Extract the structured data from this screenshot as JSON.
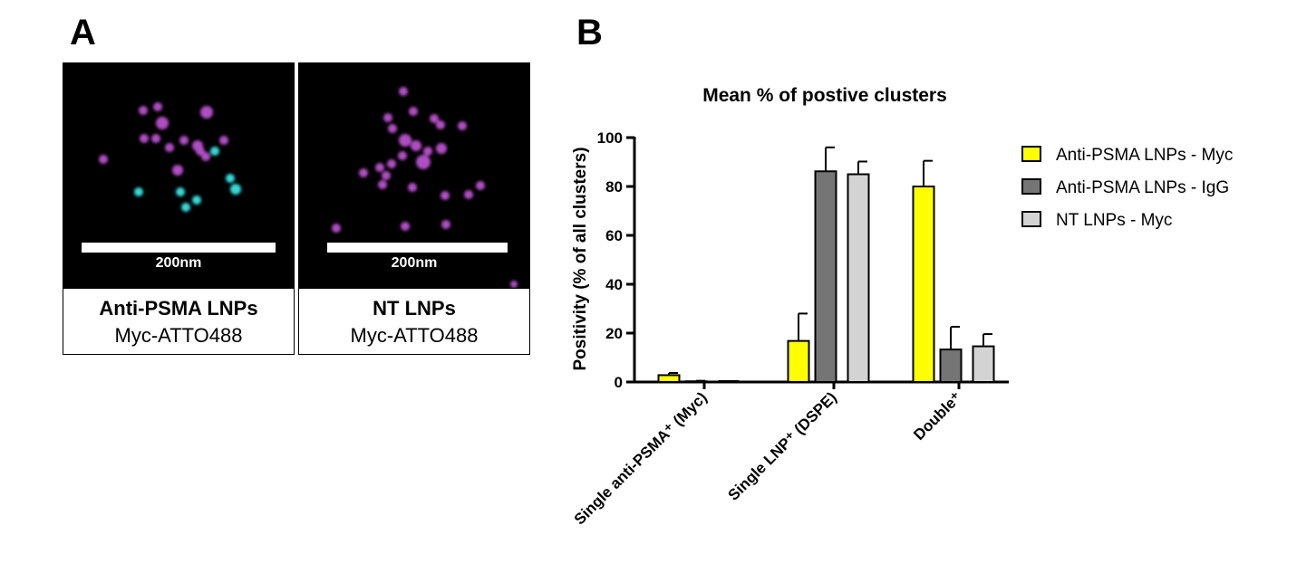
{
  "panel_a": {
    "letter": "A",
    "images": [
      {
        "scale_label": "200nm",
        "caption_title": "Anti-PSMA LNPs",
        "caption_subtitle": "Myc-ATTO488",
        "dot_colors": {
          "magenta": "#b04ec4",
          "cyan": "#36d8d8"
        }
      },
      {
        "scale_label": "200nm",
        "caption_title": "NT LNPs",
        "caption_subtitle": "Myc-ATTO488",
        "dot_colors": {
          "magenta": "#b04ec4"
        }
      }
    ]
  },
  "panel_b": {
    "letter": "B"
  },
  "chart_data": {
    "type": "bar",
    "title": "Mean % of postive clusters",
    "ylabel": "Positivity (% of all clusters)",
    "xlabel": "",
    "ylim": [
      0,
      100
    ],
    "yticks": [
      0,
      20,
      40,
      60,
      80,
      100
    ],
    "categories": [
      "Single anti-PSMA⁺ (Myc)",
      "Single LNP⁺ (DSPE)",
      "Double⁺"
    ],
    "legend_position": "right",
    "grid": false,
    "series": [
      {
        "name": "Anti-PSMA LNPs - Myc",
        "color": "#ffff00",
        "values": [
          2.8,
          16.8,
          80.0
        ],
        "errors": [
          0.9,
          11.2,
          10.5
        ]
      },
      {
        "name": "Anti-PSMA LNPs - IgG",
        "color": "#757575",
        "values": [
          0.3,
          86.2,
          13.3
        ],
        "errors": [
          0.2,
          9.8,
          9.3
        ]
      },
      {
        "name": "NT LNPs - Myc",
        "color": "#d3d3d3",
        "values": [
          0.0,
          85.0,
          14.6
        ],
        "errors": [
          0.0,
          5.2,
          5.0
        ]
      }
    ]
  }
}
